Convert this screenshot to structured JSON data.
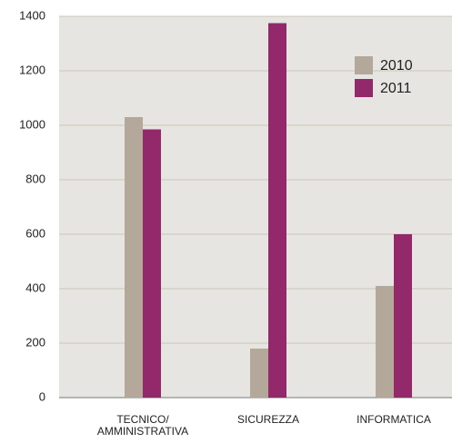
{
  "chart_data": {
    "type": "bar",
    "categories": [
      "TECNICO/\nAMMINISTRATIVA",
      "SICUREZZA",
      "INFORMATICA"
    ],
    "series": [
      {
        "name": "2010",
        "color": "#b3a89a",
        "values": [
          1030,
          180,
          410
        ]
      },
      {
        "name": "2011",
        "color": "#93286b",
        "values": [
          985,
          1375,
          600
        ]
      }
    ],
    "ylim": [
      0,
      1400
    ],
    "yticks": [
      0,
      200,
      400,
      600,
      800,
      1000,
      1200,
      1400
    ],
    "grid": true,
    "legend": "upper right"
  }
}
